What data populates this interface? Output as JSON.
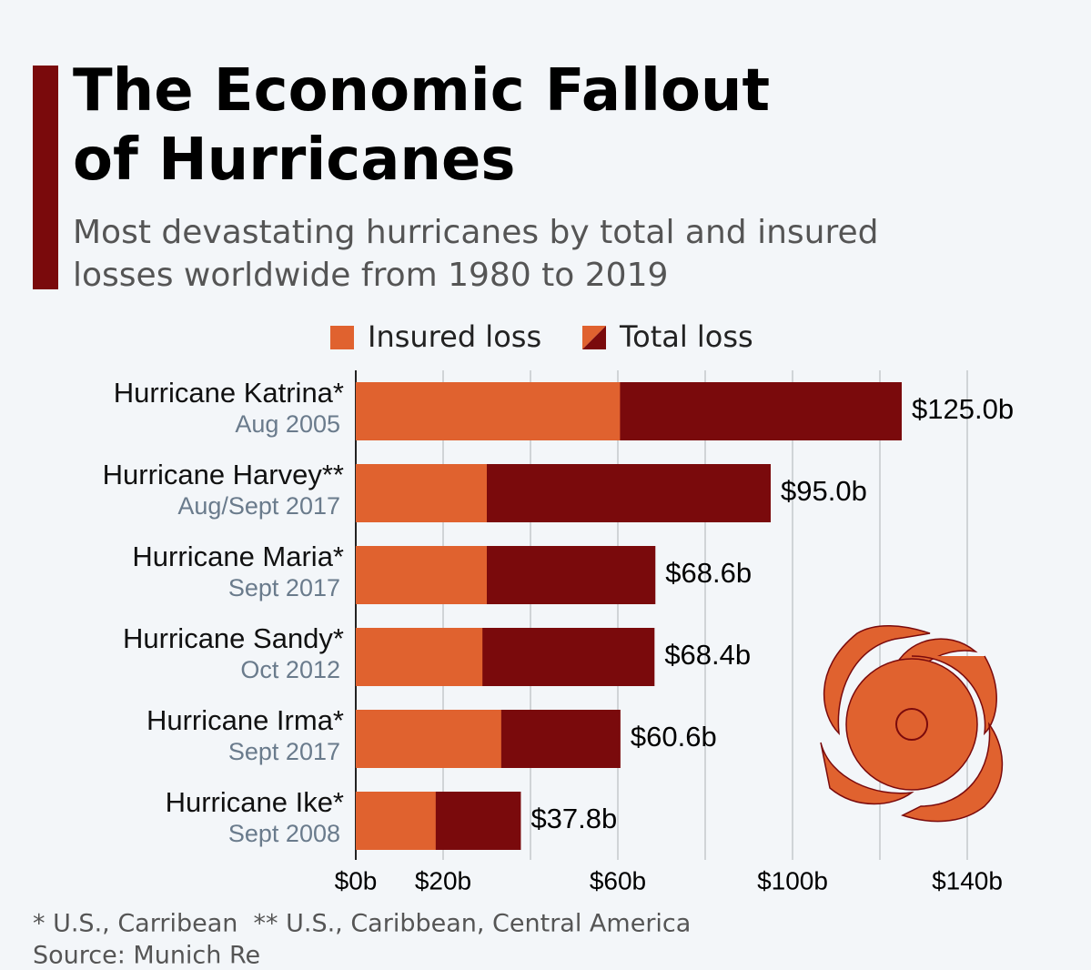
{
  "chart_data": {
    "type": "bar",
    "orientation": "horizontal",
    "title": "The Economic Fallout of Hurricanes",
    "subtitle": "Most devastating hurricanes by total and insured losses worldwide from 1980 to 2019",
    "categories": [
      "Hurricane Katrina*",
      "Hurricane Harvey**",
      "Hurricane Maria*",
      "Hurricane Sandy*",
      "Hurricane Irma*",
      "Hurricane Ike*"
    ],
    "dates": [
      "Aug 2005",
      "Aug/Sept 2017",
      "Sept 2017",
      "Oct 2012",
      "Sept 2017",
      "Sept 2008"
    ],
    "series": [
      {
        "name": "Insured loss",
        "color": "#e0622f",
        "values": [
          60.5,
          30,
          30,
          29,
          33.3,
          18.3
        ]
      },
      {
        "name": "Total loss",
        "color": "#7a0a0c",
        "values": [
          125.0,
          95.0,
          68.6,
          68.4,
          60.6,
          37.8
        ],
        "value_labels": [
          "$125.0b",
          "$95.0b",
          "$68.6b",
          "$68.4b",
          "$60.6b",
          "$37.8b"
        ]
      }
    ],
    "xlim": [
      0,
      140
    ],
    "xticks": [
      {
        "value": 0,
        "label": "$0b"
      },
      {
        "value": 20,
        "label": "$20b"
      },
      {
        "value": 40,
        "label": null
      },
      {
        "value": 60,
        "label": "$60b"
      },
      {
        "value": 80,
        "label": null
      },
      {
        "value": 100,
        "label": "$100b"
      },
      {
        "value": 120,
        "label": null
      },
      {
        "value": 140,
        "label": "$140b"
      }
    ],
    "grid": true,
    "legend": "top",
    "footnote": "* U.S., Carribean  ** U.S., Caribbean, Central America",
    "source": "Source: Munich Re"
  }
}
